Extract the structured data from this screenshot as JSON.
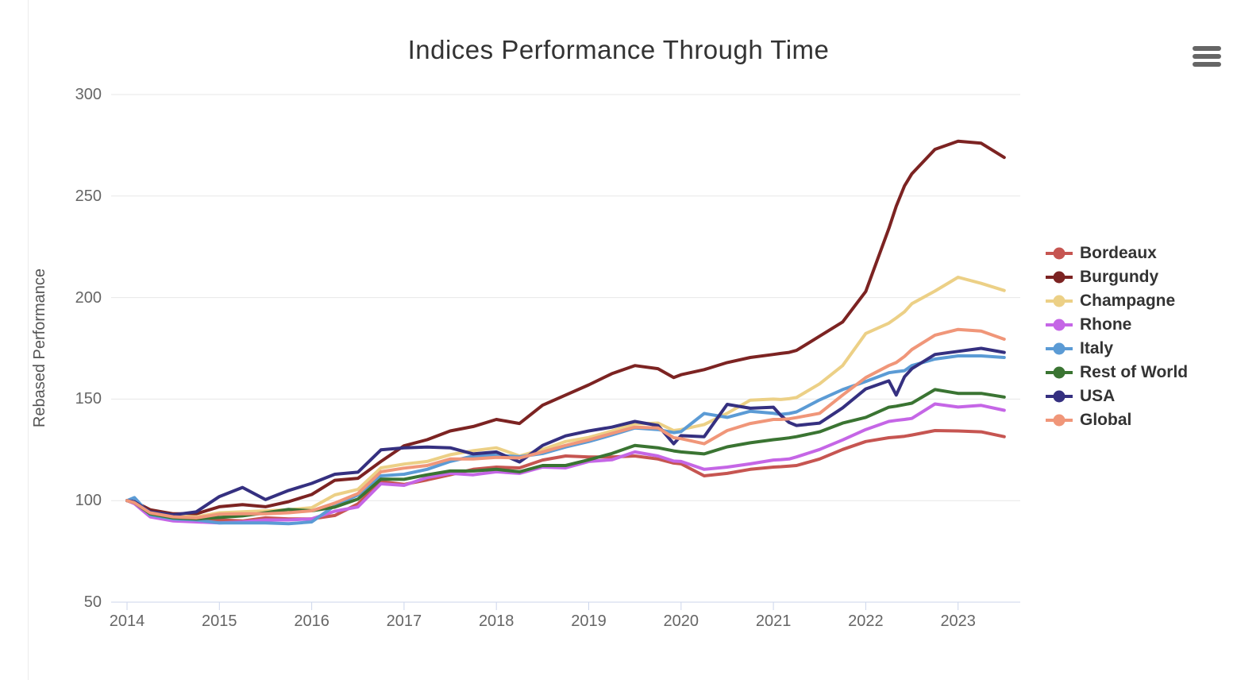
{
  "chart": {
    "title": "Indices Performance Through Time",
    "y_axis_title": "Rebased Performance",
    "menu_icon": "hamburger-icon",
    "colors": {
      "grid": "#e7e7e7",
      "axis_line": "#ccd6eb",
      "tick_mark": "#ccd6eb",
      "tick_label": "#666666",
      "title_text": "#333333",
      "legend_text": "#333333"
    }
  },
  "chart_data": {
    "type": "line",
    "title": "Indices Performance Through Time",
    "xlabel": "",
    "ylabel": "Rebased Performance",
    "ylim": [
      50,
      300
    ],
    "y_ticks": [
      50,
      100,
      150,
      200,
      250,
      300
    ],
    "x_ticks": [
      2014,
      2015,
      2016,
      2017,
      2018,
      2019,
      2020,
      2021,
      2022,
      2023
    ],
    "grid": true,
    "legend_position": "right",
    "x": [
      2014.0,
      2014.08,
      2014.25,
      2014.5,
      2014.75,
      2015.0,
      2015.25,
      2015.5,
      2015.75,
      2016.0,
      2016.25,
      2016.5,
      2016.75,
      2017.0,
      2017.25,
      2017.5,
      2017.75,
      2018.0,
      2018.25,
      2018.5,
      2018.75,
      2019.0,
      2019.25,
      2019.5,
      2019.75,
      2019.92,
      2020.0,
      2020.25,
      2020.5,
      2020.75,
      2021.0,
      2021.08,
      2021.17,
      2021.25,
      2021.5,
      2021.75,
      2022.0,
      2022.25,
      2022.33,
      2022.42,
      2022.5,
      2022.75,
      2023.0,
      2023.25,
      2023.5
    ],
    "series": [
      {
        "name": "Bordeaux",
        "color": "#C65551",
        "values": [
          100,
          99,
          93,
          91,
          90,
          90.5,
          90,
          91.5,
          91,
          91,
          92.7,
          98.4,
          109.4,
          108,
          110.2,
          112.7,
          115.4,
          116.5,
          116.1,
          120,
          122,
          121.5,
          121.5,
          122,
          120.5,
          118.5,
          118.1,
          112.2,
          113.4,
          115.4,
          116.5,
          116.7,
          117,
          117.3,
          120.5,
          125.2,
          129.1,
          131,
          131.3,
          131.7,
          132.3,
          134.5,
          134.3,
          133.9,
          131.5
        ]
      },
      {
        "name": "Burgundy",
        "color": "#7C2322",
        "values": [
          100,
          99.5,
          95.5,
          93.5,
          93.5,
          97,
          98,
          97,
          99.5,
          103,
          110,
          111,
          119.3,
          127,
          130,
          134.3,
          136.5,
          140,
          138,
          147,
          152,
          157,
          162.5,
          166.5,
          165,
          160.6,
          162,
          164.5,
          168,
          170.5,
          172,
          172.5,
          173,
          174,
          181,
          188,
          203,
          234,
          245,
          255,
          261,
          273,
          277,
          276,
          269
        ]
      },
      {
        "name": "Champagne",
        "color": "#ECD086",
        "values": [
          100,
          99,
          94,
          92.5,
          92,
          94,
          94.5,
          95,
          95.5,
          96.5,
          102.8,
          105.5,
          116.1,
          118,
          119.3,
          122.6,
          124.6,
          126,
          122,
          125.2,
          129.1,
          131.1,
          134.3,
          137.8,
          138.2,
          134.5,
          135,
          137.5,
          143,
          149.5,
          150,
          149.8,
          150.2,
          150.8,
          157.5,
          166.5,
          182.3,
          187.4,
          190,
          193,
          197,
          203.2,
          210,
          207,
          203.5
        ]
      },
      {
        "name": "Rhone",
        "color": "#C566E6",
        "values": [
          100,
          98.5,
          92,
          90,
          89.5,
          89,
          89.5,
          90.5,
          90.5,
          91,
          94.8,
          96.9,
          108.3,
          107.5,
          111.4,
          113.4,
          112.7,
          114.2,
          113.4,
          116.5,
          116.1,
          119.3,
          120.1,
          124,
          122,
          119.5,
          119.3,
          115.4,
          116.5,
          118.1,
          120,
          120.2,
          120.5,
          121.5,
          125.2,
          129.9,
          135,
          139,
          139.5,
          140,
          140.5,
          147.6,
          146.1,
          146.9,
          144.5
        ]
      },
      {
        "name": "Italy",
        "color": "#5B9BD5",
        "values": [
          100,
          101.5,
          93,
          91,
          90.5,
          89,
          89,
          89,
          88.6,
          89.5,
          97.5,
          102.8,
          112.2,
          113,
          115.4,
          119.3,
          122,
          122.4,
          121.6,
          123.2,
          126.4,
          129.1,
          132.3,
          135.8,
          135,
          133.5,
          134,
          142.9,
          141,
          144,
          143,
          142.5,
          142.9,
          143.7,
          149.6,
          154.7,
          158.7,
          163,
          163.5,
          164,
          166.5,
          169.7,
          171.3,
          171.3,
          170.5
        ]
      },
      {
        "name": "Rest of World",
        "color": "#3A7432",
        "values": [
          100,
          99,
          93.5,
          91.5,
          91,
          91.7,
          92.5,
          94,
          95.7,
          95,
          96.8,
          100.8,
          110.6,
          110.5,
          112.7,
          114.6,
          114.6,
          115.4,
          114.2,
          117.3,
          117.3,
          120.1,
          123.2,
          127.2,
          126,
          124.5,
          124,
          123,
          126.5,
          128.5,
          130,
          130.4,
          130.9,
          131.5,
          133.9,
          138.2,
          141,
          146,
          146.5,
          147.3,
          148,
          154.7,
          152.8,
          152.8,
          151
        ]
      },
      {
        "name": "USA",
        "color": "#353080",
        "values": [
          100,
          99.5,
          94.5,
          93,
          94.5,
          102,
          106.5,
          100.5,
          105,
          108.5,
          113,
          114,
          125,
          126,
          126.4,
          126,
          123,
          124,
          119,
          127.2,
          131.9,
          134.3,
          136.2,
          139,
          137,
          128,
          132,
          131.5,
          147.4,
          145.5,
          146,
          142,
          138.5,
          137,
          138.2,
          145.7,
          155,
          159,
          152,
          161,
          165,
          172,
          173.5,
          175,
          173
        ]
      },
      {
        "name": "Global",
        "color": "#F09679",
        "values": [
          100,
          99,
          94,
          92,
          91.5,
          93.3,
          93.5,
          93.5,
          94,
          95,
          98.8,
          103.5,
          114.2,
          116,
          117.3,
          120.5,
          120.5,
          121.3,
          121,
          124,
          127.2,
          129.9,
          133.1,
          136.2,
          135.8,
          131,
          130.5,
          128,
          134.5,
          138,
          140,
          140,
          140.3,
          140.9,
          143,
          152,
          160.6,
          166.5,
          168,
          171,
          174.4,
          181.5,
          184.3,
          183.5,
          179.5
        ]
      }
    ]
  }
}
